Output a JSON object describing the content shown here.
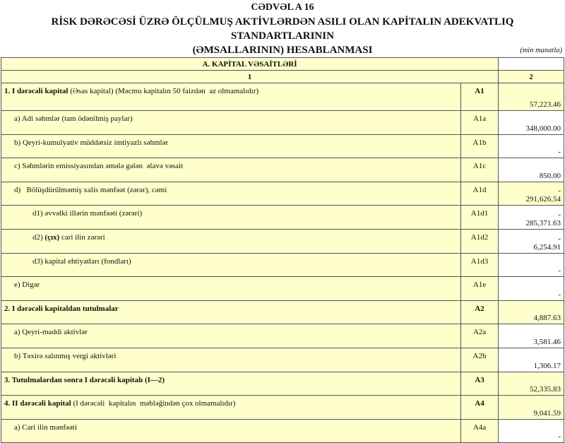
{
  "title": "CƏDVƏL A 16",
  "subtitle_line1": "RİSK DƏRƏCƏSİ ÜZRƏ ÖLÇÜLMUŞ AKTİVLƏRDƏN ASILI OLAN KAPİTALIN ADEKVATLIQ STANDARTLARININ",
  "subtitle_line2": "(ƏMSALLARININ) HESABLANMASI",
  "unit": "(min manatla)",
  "section_header": "A. KAPİTAL VƏSAİTLƏRİ",
  "col1": "1",
  "col2": "2",
  "colors": {
    "highlight": "#ffffcc",
    "border": "#555555"
  },
  "rows": [
    {
      "bold": "1. I dərəcəli kapital",
      "label": " (Əsas kapital) (Məcmu kapitalın 50 faizdən  az olmamalıdır)",
      "code": "A1",
      "value": "57,223.46",
      "indent": 0,
      "code_bold": true,
      "val_hl": true
    },
    {
      "bold": "",
      "label": "a) Adi səhmlər (tam ödənilmiş paylar)",
      "code": "A1a",
      "value": "348,000.00",
      "indent": 1
    },
    {
      "bold": "",
      "label": "b) Qeyri-kumulyativ müddətsiz imtiyazlı səhmlər",
      "code": "A1b",
      "value": "-",
      "indent": 1
    },
    {
      "bold": "",
      "label": "c) Səhmlərin emissiyasından əmələ gələn  əlavə vəsait",
      "code": "A1c",
      "value": "850.00",
      "indent": 1
    },
    {
      "bold": "",
      "label": "d)   Bölüşdürülməmiş xalis mənfəət (zərər), cəmi",
      "code": "A1d",
      "value": "-\n291,626.54",
      "indent": 1,
      "val_hl": true
    },
    {
      "bold": "",
      "label": "d1) əvvəlki illərin mənfəəti (zərəri)",
      "code": "A1d1",
      "value": "-\n285,371.63",
      "indent": 2
    },
    {
      "bold": "",
      "label": "d2) ",
      "label_bold_part": "(çıx)",
      "label_rest": " cari ilin zərəri",
      "code": "A1d2",
      "value": "-\n6,254.91",
      "indent": 2
    },
    {
      "bold": "",
      "label": "d3) kapital ehtiyatları (fondları)",
      "code": "A1d3",
      "value": "-",
      "indent": 2
    },
    {
      "bold": "",
      "label": "e) Digər",
      "code": "A1e",
      "value": "-",
      "indent": 1
    },
    {
      "bold": "2. I dərəcəli kapitaldan  tutulmalar",
      "label": "",
      "code": "A2",
      "value": "4,887.63",
      "indent": 0,
      "code_bold": true,
      "val_hl": true
    },
    {
      "bold": "",
      "label": "a) Qeyri-maddi aktivlər",
      "code": "A2a",
      "value": "3,581.46",
      "indent": 1
    },
    {
      "bold": "",
      "label": "b) Təxirə salınmış vergi aktivləri",
      "code": "A2b",
      "value": "1,306.17",
      "indent": 1
    },
    {
      "bold": "3. Tutulmalardan  sonra I dərəcəli kapitalı (I—2)",
      "label": "",
      "code": "A3",
      "value": "52,335.83",
      "indent": 0,
      "code_bold": true,
      "val_hl": true
    },
    {
      "bold": "4. II dərəcəli  kapital",
      "label": " (I dərəcəli  kapitalın  məbləğindən çox olmamalıdır)",
      "code": "A4",
      "value": "9,041.59",
      "indent": 0,
      "code_bold": true,
      "val_hl": true
    },
    {
      "bold": "",
      "label": "a) Cari ilin mənfəəti",
      "code": "A4a",
      "value": "-",
      "indent": 1
    }
  ]
}
